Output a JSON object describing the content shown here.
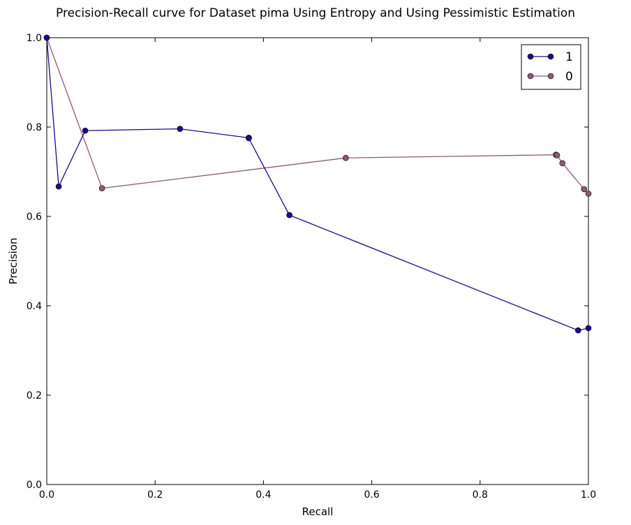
{
  "chart_data": {
    "type": "line",
    "title": "Precision-Recall curve for Dataset pima Using Entropy and Using Pessimistic Estimation",
    "xlabel": "Recall",
    "ylabel": "Precision",
    "xlim": [
      0,
      1
    ],
    "ylim": [
      0,
      1
    ],
    "xticks": [
      "0.0",
      "0.2",
      "0.4",
      "0.6",
      "0.8",
      "1.0"
    ],
    "yticks": [
      "0.0",
      "0.2",
      "0.4",
      "0.6",
      "0.8",
      "1.0"
    ],
    "grid": false,
    "legend_position": "top-right",
    "series": [
      {
        "name": "1",
        "color": "#1a0a8c",
        "points": [
          [
            0.0,
            1.0
          ],
          [
            0.022,
            0.667
          ],
          [
            0.071,
            0.792
          ],
          [
            0.246,
            0.796
          ],
          [
            0.373,
            0.776
          ],
          [
            0.373,
            0.775
          ],
          [
            0.448,
            0.603
          ],
          [
            0.981,
            0.345
          ],
          [
            1.0,
            0.35
          ]
        ]
      },
      {
        "name": "0",
        "color": "#8c5a78",
        "points": [
          [
            0.0,
            1.0
          ],
          [
            0.102,
            0.663
          ],
          [
            0.552,
            0.731
          ],
          [
            0.94,
            0.738
          ],
          [
            0.942,
            0.737
          ],
          [
            0.952,
            0.719
          ],
          [
            0.992,
            0.661
          ],
          [
            1.0,
            0.651
          ]
        ]
      }
    ]
  }
}
